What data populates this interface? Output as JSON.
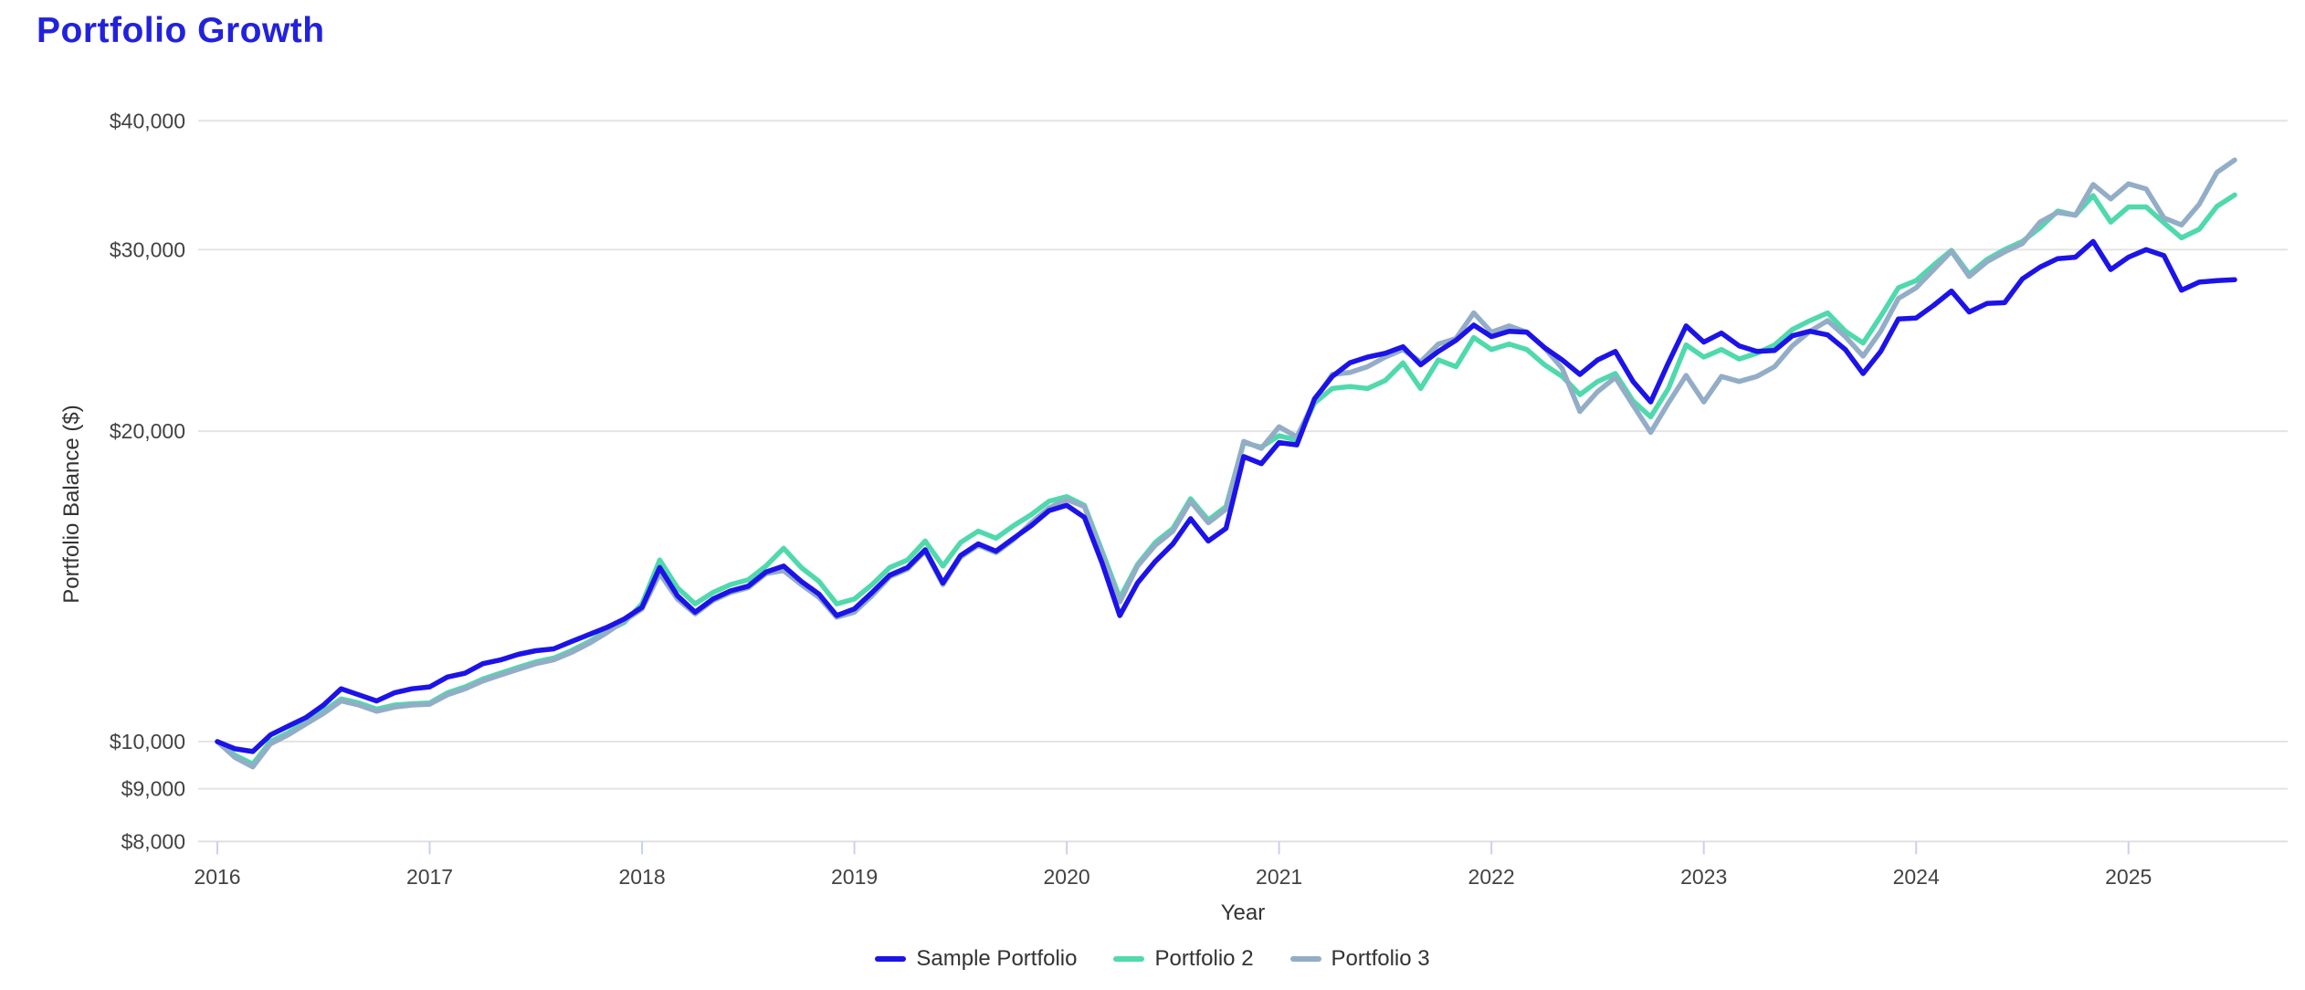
{
  "title": "Portfolio Growth",
  "colors": {
    "title": "#2222dd",
    "background": "#ffffff",
    "grid": "#e4e4e4",
    "axis_line": "#e0e0e0",
    "tick_mark": "#c8d2ea",
    "tick_text": "#424242",
    "axis_title_text": "#333333",
    "legend_text": "#333333"
  },
  "chart_data": {
    "type": "line",
    "title": "Portfolio Growth",
    "xlabel": "Year",
    "ylabel": "Portfolio Balance ($)",
    "y_scale": "log",
    "grid": "horizontal-only",
    "legend_position": "bottom",
    "x_interval": "monthly",
    "x_start": "2016-01",
    "x_end": "2025-07",
    "x_ticks": [
      "2016",
      "2017",
      "2018",
      "2019",
      "2020",
      "2021",
      "2022",
      "2023",
      "2024",
      "2025"
    ],
    "y_ticks": [
      {
        "value": 8000,
        "label": "$8,000"
      },
      {
        "value": 9000,
        "label": "$9,000"
      },
      {
        "value": 10000,
        "label": "$10,000"
      },
      {
        "value": 20000,
        "label": "$20,000"
      },
      {
        "value": 30000,
        "label": "$30,000"
      },
      {
        "value": 40000,
        "label": "$40,000"
      }
    ],
    "series": [
      {
        "name": "Sample Portfolio",
        "color": "#1c13e8",
        "values": [
          10000,
          9840,
          9780,
          10150,
          10350,
          10550,
          10850,
          11250,
          11100,
          10950,
          11150,
          11250,
          11300,
          11550,
          11650,
          11900,
          12000,
          12150,
          12250,
          12300,
          12500,
          12700,
          12900,
          13150,
          13500,
          14750,
          13850,
          13350,
          13750,
          14000,
          14150,
          14600,
          14800,
          14300,
          13900,
          13250,
          13450,
          13950,
          14500,
          14750,
          15350,
          14250,
          15150,
          15550,
          15300,
          15750,
          16200,
          16750,
          16950,
          16500,
          14900,
          13250,
          14250,
          14950,
          15550,
          16450,
          15650,
          16100,
          18900,
          18600,
          19500,
          19400,
          21500,
          22600,
          23300,
          23600,
          23800,
          24150,
          23200,
          23900,
          24500,
          25350,
          24700,
          25000,
          24950,
          24100,
          23450,
          22700,
          23450,
          23900,
          22350,
          21350,
          23300,
          25300,
          24400,
          24900,
          24200,
          23900,
          23950,
          24750,
          25000,
          24800,
          24000,
          22750,
          23900,
          25700,
          25750,
          26500,
          27350,
          26100,
          26600,
          26650,
          28100,
          28850,
          29400,
          29500,
          30550,
          28700,
          29500,
          30000,
          29600,
          27400,
          27900,
          28000,
          28050
        ]
      },
      {
        "name": "Portfolio 2",
        "color": "#4fd9ac",
        "values": [
          10000,
          9700,
          9510,
          10000,
          10200,
          10450,
          10700,
          11000,
          10900,
          10750,
          10850,
          10880,
          10900,
          11150,
          11300,
          11500,
          11650,
          11800,
          11950,
          12050,
          12250,
          12500,
          12800,
          13050,
          13600,
          15000,
          14100,
          13600,
          13950,
          14200,
          14350,
          14800,
          15400,
          14750,
          14300,
          13600,
          13750,
          14200,
          14750,
          15000,
          15650,
          14800,
          15600,
          16000,
          15750,
          16200,
          16600,
          17100,
          17280,
          16950,
          15300,
          13780,
          14850,
          15600,
          16100,
          17200,
          16400,
          16900,
          19500,
          19300,
          19800,
          19600,
          21300,
          22000,
          22100,
          22000,
          22400,
          23300,
          22000,
          23450,
          23100,
          24650,
          24000,
          24300,
          24000,
          23200,
          22600,
          21700,
          22350,
          22750,
          21400,
          20650,
          22000,
          24250,
          23600,
          24000,
          23500,
          23800,
          24250,
          25100,
          25600,
          26050,
          25000,
          24350,
          25850,
          27550,
          28000,
          29000,
          29950,
          28400,
          29350,
          30000,
          30550,
          31500,
          32700,
          32400,
          33850,
          31900,
          33000,
          33000,
          31850,
          30800,
          31400,
          33050,
          33900
        ]
      },
      {
        "name": "Portfolio 3",
        "color": "#93adc7",
        "values": [
          10000,
          9650,
          9450,
          9950,
          10150,
          10400,
          10650,
          10950,
          10850,
          10700,
          10800,
          10850,
          10870,
          11100,
          11250,
          11450,
          11600,
          11750,
          11900,
          12000,
          12200,
          12450,
          12750,
          13100,
          13450,
          14550,
          13750,
          13300,
          13700,
          13950,
          14100,
          14550,
          14650,
          14200,
          13800,
          13200,
          13350,
          13850,
          14450,
          14700,
          15300,
          14200,
          15100,
          15500,
          15250,
          15700,
          16300,
          16850,
          17170,
          16900,
          15200,
          13660,
          14800,
          15500,
          16000,
          17100,
          16300,
          16800,
          19550,
          19250,
          20200,
          19750,
          21400,
          22700,
          22800,
          23100,
          23600,
          24000,
          23350,
          24300,
          24600,
          26050,
          24950,
          25300,
          24950,
          24100,
          23000,
          20900,
          21850,
          22550,
          21200,
          19950,
          21300,
          22650,
          21350,
          22600,
          22350,
          22600,
          23100,
          24200,
          25000,
          25600,
          24700,
          23650,
          25000,
          26900,
          27550,
          28700,
          29900,
          28250,
          29200,
          29850,
          30400,
          31900,
          32600,
          32400,
          34700,
          33600,
          34750,
          34350,
          32200,
          31700,
          33200,
          35650,
          36650
        ]
      }
    ]
  }
}
